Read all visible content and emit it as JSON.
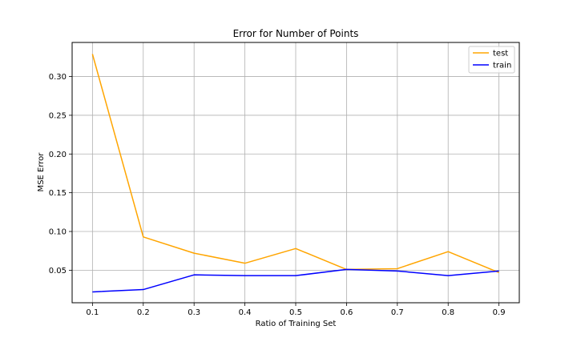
{
  "chart_data": {
    "type": "line",
    "title": "Error for Number of Points",
    "xlabel": "Ratio of Training Set",
    "ylabel": "MSE Error",
    "x": [
      0.1,
      0.2,
      0.3,
      0.4,
      0.5,
      0.6,
      0.7,
      0.8,
      0.9
    ],
    "xticks": [
      "0.1",
      "0.2",
      "0.3",
      "0.4",
      "0.5",
      "0.6",
      "0.7",
      "0.8",
      "0.9"
    ],
    "yticks": [
      "0.05",
      "0.10",
      "0.15",
      "0.20",
      "0.25",
      "0.30"
    ],
    "xlim": [
      0.06,
      0.94
    ],
    "ylim": [
      0.008,
      0.344
    ],
    "grid": true,
    "legend_position": "top-right",
    "series": [
      {
        "name": "test",
        "color": "#ffa500",
        "values": [
          0.329,
          0.093,
          0.072,
          0.059,
          0.078,
          0.051,
          0.052,
          0.074,
          0.047
        ]
      },
      {
        "name": "train",
        "color": "#0000ff",
        "values": [
          0.022,
          0.025,
          0.044,
          0.043,
          0.043,
          0.051,
          0.049,
          0.043,
          0.049
        ]
      }
    ]
  }
}
